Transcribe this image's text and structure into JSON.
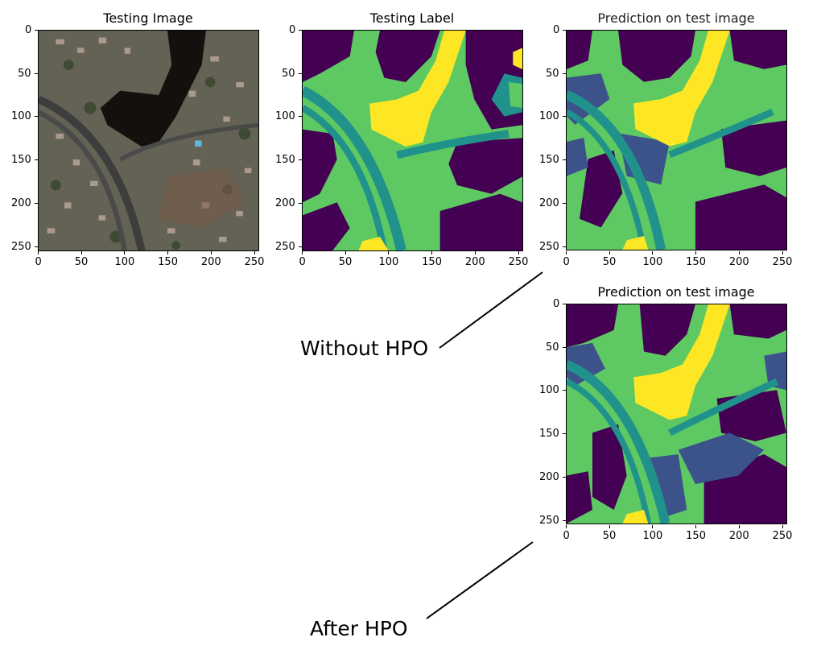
{
  "colors": {
    "class0": "#440154",
    "class1": "#3b528b",
    "class2": "#21918c",
    "class3": "#5ec962",
    "class4": "#fde725",
    "aerial_base": "#5b5a4e"
  },
  "axis": {
    "x_ticks": [
      "0",
      "50",
      "100",
      "150",
      "200",
      "250"
    ],
    "y_ticks": [
      "0",
      "50",
      "100",
      "150",
      "200",
      "250"
    ]
  },
  "panels": {
    "testing_image": {
      "title": "Testing Image"
    },
    "testing_label": {
      "title": "Testing Label"
    },
    "pred_without": {
      "title": "Prediction on test image"
    },
    "pred_after": {
      "title": "Prediction on test image"
    }
  },
  "annotations": {
    "without_hpo": "Without HPO",
    "after_hpo": "After HPO"
  }
}
